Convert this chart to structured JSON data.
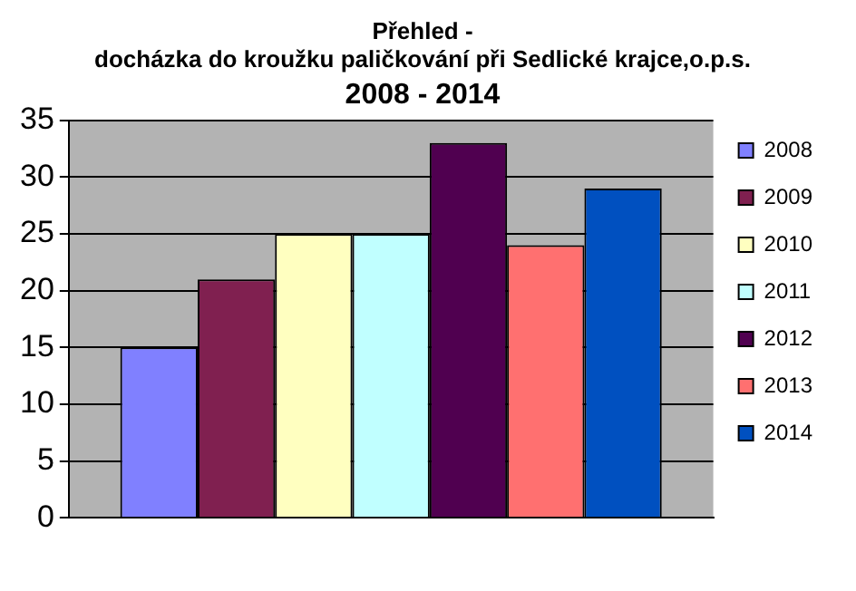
{
  "chart_data": {
    "type": "bar",
    "title": "Přehled -\ndocházka do kroužku paličkování při Sedlické krajce,o.p.s.",
    "subtitle": "2008 - 2014",
    "categories": [
      null
    ],
    "series": [
      {
        "name": "2008",
        "color": "#8080ff",
        "values": [
          15
        ]
      },
      {
        "name": "2009",
        "color": "#802050",
        "values": [
          21
        ]
      },
      {
        "name": "2010",
        "color": "#ffffc0",
        "values": [
          25
        ]
      },
      {
        "name": "2011",
        "color": "#c0ffff",
        "values": [
          25
        ]
      },
      {
        "name": "2012",
        "color": "#500050",
        "values": [
          33
        ]
      },
      {
        "name": "2013",
        "color": "#ff7070",
        "values": [
          24
        ]
      },
      {
        "name": "2014",
        "color": "#0050c0",
        "values": [
          29
        ]
      }
    ],
    "ylim": [
      0,
      35
    ],
    "yticks": [
      0,
      5,
      10,
      15,
      20,
      25,
      30,
      35
    ],
    "grid": "y",
    "legend": "right"
  }
}
